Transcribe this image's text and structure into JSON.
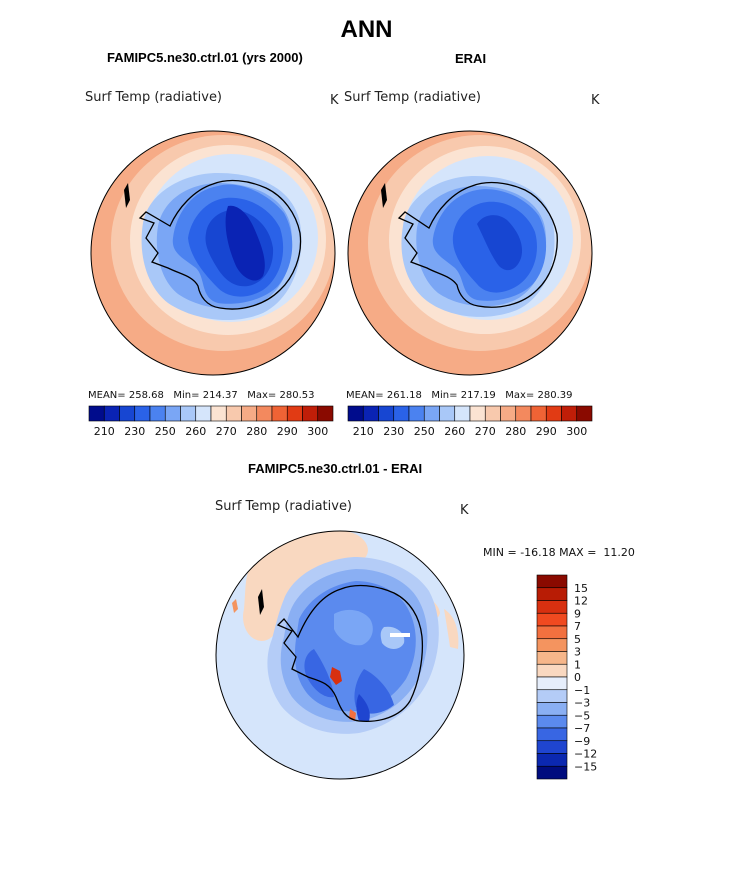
{
  "figure_title": "ANN",
  "panels": [
    {
      "title": "FAMIPC5.ne30.ctrl.01 (yrs 2000)",
      "variable": "Surf Temp (radiative)",
      "units": "K",
      "stats": {
        "mean_label": "MEAN=",
        "mean": "258.68",
        "min_label": "Min=",
        "min": "214.37",
        "max_label": "Max=",
        "max": "280.53"
      }
    },
    {
      "title": "ERAI",
      "variable": "Surf Temp (radiative)",
      "units": "K",
      "stats": {
        "mean_label": "MEAN=",
        "mean": "261.18",
        "min_label": "Min=",
        "min": "217.19",
        "max_label": "Max=",
        "max": "280.39"
      }
    }
  ],
  "abs_colorbar": {
    "tick_labels": [
      "210",
      "230",
      "250",
      "260",
      "270",
      "280",
      "290",
      "300"
    ],
    "colors": [
      "#000c8c",
      "#0a23b4",
      "#1746d2",
      "#2a62e8",
      "#4b82f0",
      "#7aa6f5",
      "#a9c8f8",
      "#d5e5fb",
      "#fbe3d2",
      "#f8c9ad",
      "#f6ab86",
      "#f3895e",
      "#ef6335",
      "#e13b14",
      "#c01e08",
      "#8a0a00"
    ]
  },
  "diff_panel": {
    "title": "FAMIPC5.ne30.ctrl.01 - ERAI",
    "variable": "Surf Temp (radiative)",
    "units": "K",
    "range_text": {
      "min_label": "MIN =",
      "min": "-16.18",
      "max_label": "MAX =",
      "max": "11.20"
    }
  },
  "diff_colorbar": {
    "tick_labels": [
      "15",
      "12",
      "9",
      "7",
      "5",
      "3",
      "1",
      "0",
      "−1",
      "−3",
      "−5",
      "−7",
      "−9",
      "−12",
      "−15"
    ],
    "colors": [
      "#8a0a00",
      "#b81c05",
      "#d83010",
      "#f04a20",
      "#f2703f",
      "#f4945f",
      "#f6b68a",
      "#f9d8c0",
      "#e6eefb",
      "#b4ccf7",
      "#8aaff3",
      "#5b8aee",
      "#3866e3",
      "#1f45d0",
      "#0b28b0",
      "#000c7e"
    ]
  },
  "chart_data": [
    {
      "type": "heatmap",
      "title": "FAMIPC5.ne30.ctrl.01 (yrs 2000)",
      "subtitle": "Surf Temp (radiative)",
      "units": "K",
      "projection": "south polar stereographic",
      "contour_levels": [
        210,
        220,
        230,
        240,
        250,
        255,
        260,
        265,
        270,
        275,
        280,
        285,
        290,
        295,
        300
      ],
      "mean": 258.68,
      "min": 214.37,
      "max": 280.53
    },
    {
      "type": "heatmap",
      "title": "ERAI",
      "subtitle": "Surf Temp (radiative)",
      "units": "K",
      "projection": "south polar stereographic",
      "contour_levels": [
        210,
        220,
        230,
        240,
        250,
        255,
        260,
        265,
        270,
        275,
        280,
        285,
        290,
        295,
        300
      ],
      "mean": 261.18,
      "min": 217.19,
      "max": 280.39
    },
    {
      "type": "heatmap",
      "title": "FAMIPC5.ne30.ctrl.01 - ERAI",
      "subtitle": "Surf Temp (radiative)",
      "units": "K",
      "projection": "south polar stereographic",
      "contour_levels": [
        -15,
        -12,
        -9,
        -7,
        -5,
        -3,
        -1,
        0,
        1,
        3,
        5,
        7,
        9,
        12,
        15
      ],
      "min": -16.18,
      "max": 11.2
    }
  ]
}
